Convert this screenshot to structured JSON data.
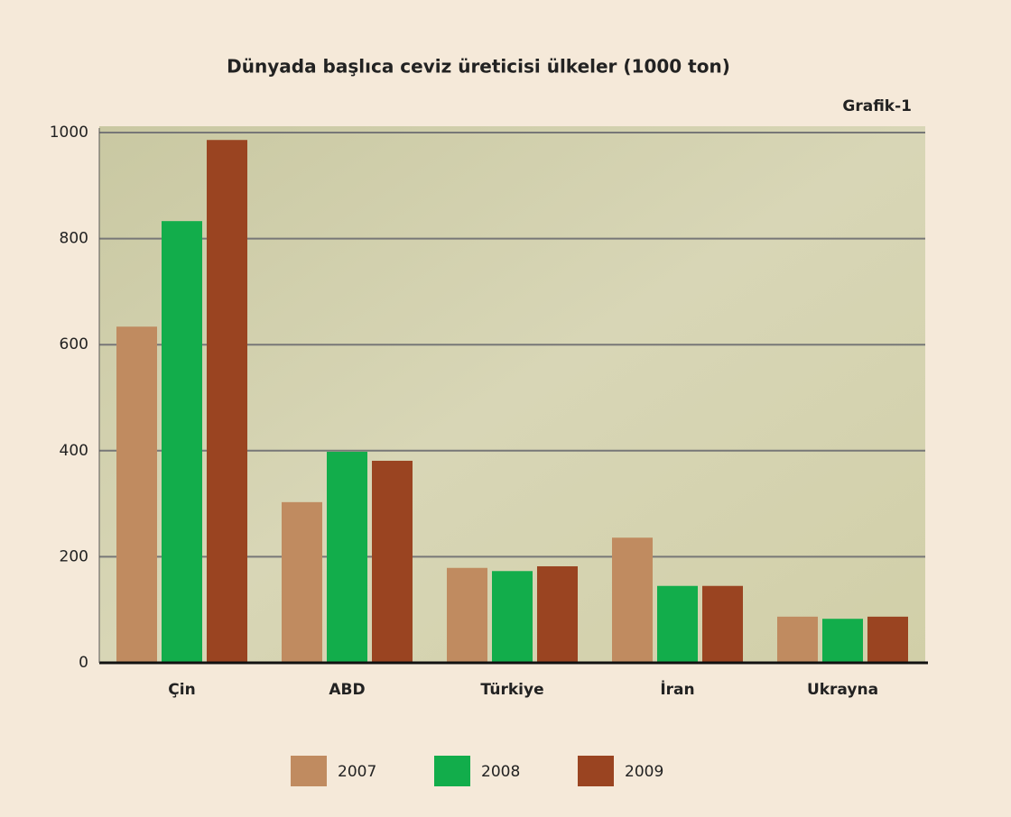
{
  "chart_data": {
    "type": "bar",
    "title": "Dünyada başlıca ceviz üreticisi ülkeler (1000 ton)",
    "subtitle": "Grafik-1",
    "categories": [
      "Çin",
      "ABD",
      "Türkiye",
      "İran",
      "Ukrayna"
    ],
    "series": [
      {
        "name": "2007",
        "color": "#c08b60",
        "values": [
          634,
          303,
          179,
          236,
          87
        ]
      },
      {
        "name": "2008",
        "color": "#12ad4b",
        "values": [
          833,
          398,
          173,
          145,
          83
        ]
      },
      {
        "name": "2009",
        "color": "#9a4421",
        "values": [
          986,
          381,
          182,
          145,
          87
        ]
      }
    ],
    "ylim": [
      0,
      1000
    ],
    "yticks": [
      0,
      200,
      400,
      600,
      800,
      1000
    ],
    "grid": true
  }
}
